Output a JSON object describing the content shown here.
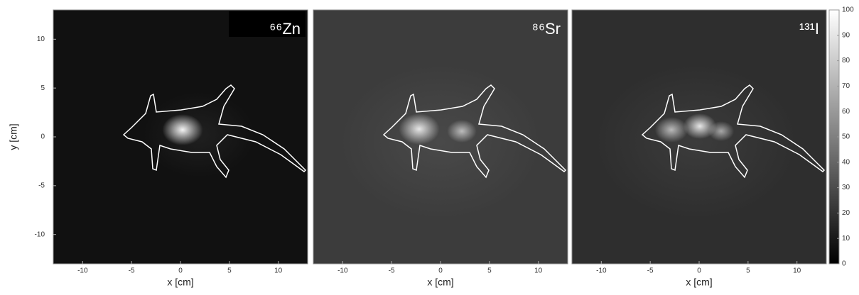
{
  "chart_data": [
    {
      "type": "image",
      "title": "⁶⁶Zn",
      "xlabel": "x [cm]",
      "ylabel": "y [cm]",
      "xlim": [
        -13,
        13
      ],
      "xticks": [
        -10,
        -5,
        0,
        5,
        10
      ],
      "ylim": [
        -13,
        13
      ],
      "yticks": [
        -10,
        -5,
        0,
        5,
        10
      ]
    },
    {
      "type": "image",
      "title": "⁸⁶Sr",
      "xlabel": "x [cm]",
      "xlim": [
        -13,
        13
      ],
      "xticks": [
        -10,
        -5,
        0,
        5,
        10
      ],
      "ylim": [
        -13,
        13
      ]
    },
    {
      "type": "image",
      "title": "¹³¹I",
      "xlabel": "x [cm]",
      "xlim": [
        -13,
        13
      ],
      "xticks": [
        -10,
        -5,
        0,
        5,
        10
      ],
      "ylim": [
        -13,
        13
      ]
    }
  ],
  "colorbar": {
    "ylim": [
      0,
      100
    ],
    "yticks": [
      0,
      10,
      20,
      30,
      40,
      50,
      60,
      70,
      80,
      90,
      100
    ]
  }
}
